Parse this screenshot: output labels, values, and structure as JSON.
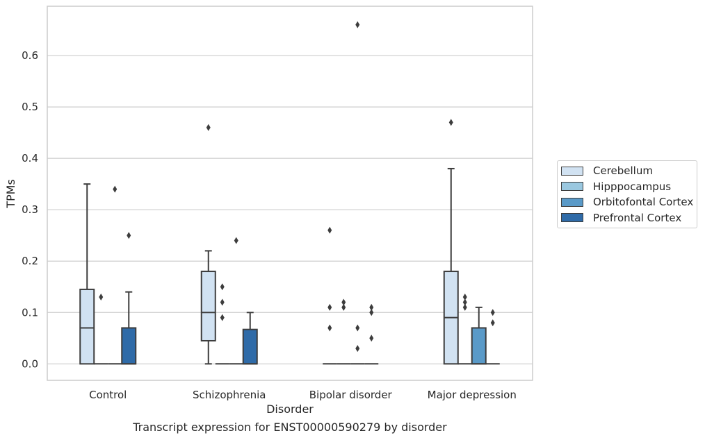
{
  "caption": "Transcript expression for ENST00000590279 by disorder",
  "chart_data": {
    "type": "box",
    "title": "",
    "xlabel": "Disorder",
    "ylabel": "TPMs",
    "ylim": [
      -0.032,
      0.696
    ],
    "yticks": [
      "0.0",
      "0.1",
      "0.2",
      "0.3",
      "0.4",
      "0.5",
      "0.6"
    ],
    "grid": true,
    "legend_position": "right, outside plot",
    "categories": [
      "Control",
      "Schizophrenia",
      "Bipolar disorder",
      "Major depression"
    ],
    "series": [
      {
        "name": "Cerebellum",
        "color": "#d1e2f2",
        "boxes": [
          {
            "q1": 0.0,
            "median": 0.07,
            "q3": 0.145,
            "whisker_low": 0.0,
            "whisker_high": 0.35,
            "outliers": []
          },
          {
            "q1": 0.045,
            "median": 0.1,
            "q3": 0.18,
            "whisker_low": 0.0,
            "whisker_high": 0.22,
            "outliers": [
              0.46
            ]
          },
          {
            "q1": 0.0,
            "median": 0.0,
            "q3": 0.0,
            "whisker_low": 0.0,
            "whisker_high": 0.0,
            "outliers": [
              0.07,
              0.11,
              0.26
            ]
          },
          {
            "q1": 0.0,
            "median": 0.09,
            "q3": 0.18,
            "whisker_low": 0.0,
            "whisker_high": 0.38,
            "outliers": [
              0.47
            ]
          }
        ]
      },
      {
        "name": "Hipppocampus",
        "color": "#9ac8e0",
        "boxes": [
          {
            "q1": 0.0,
            "median": 0.0,
            "q3": 0.0,
            "whisker_low": 0.0,
            "whisker_high": 0.0,
            "outliers": [
              0.13
            ]
          },
          {
            "q1": 0.0,
            "median": 0.0,
            "q3": 0.0,
            "whisker_low": 0.0,
            "whisker_high": 0.0,
            "outliers": [
              0.09,
              0.12,
              0.15
            ]
          },
          {
            "q1": 0.0,
            "median": 0.0,
            "q3": 0.0,
            "whisker_low": 0.0,
            "whisker_high": 0.0,
            "outliers": [
              0.11,
              0.12
            ]
          },
          {
            "q1": 0.0,
            "median": 0.0,
            "q3": 0.0,
            "whisker_low": 0.0,
            "whisker_high": 0.0,
            "outliers": [
              0.11,
              0.12,
              0.13
            ]
          }
        ]
      },
      {
        "name": "Orbitofontal Cortex",
        "color": "#5a9ac8",
        "boxes": [
          {
            "q1": 0.0,
            "median": 0.0,
            "q3": 0.0,
            "whisker_low": 0.0,
            "whisker_high": 0.0,
            "outliers": [
              0.34
            ]
          },
          {
            "q1": 0.0,
            "median": 0.0,
            "q3": 0.0,
            "whisker_low": 0.0,
            "whisker_high": 0.0,
            "outliers": [
              0.24
            ]
          },
          {
            "q1": 0.0,
            "median": 0.0,
            "q3": 0.0,
            "whisker_low": 0.0,
            "whisker_high": 0.0,
            "outliers": [
              0.03,
              0.07,
              0.66
            ]
          },
          {
            "q1": 0.0,
            "median": 0.0,
            "q3": 0.07,
            "whisker_low": 0.0,
            "whisker_high": 0.11,
            "outliers": []
          }
        ]
      },
      {
        "name": "Prefrontal Cortex",
        "color": "#2f6ba8",
        "boxes": [
          {
            "q1": 0.0,
            "median": 0.0,
            "q3": 0.07,
            "whisker_low": 0.0,
            "whisker_high": 0.14,
            "outliers": [
              0.25
            ]
          },
          {
            "q1": 0.0,
            "median": 0.0,
            "q3": 0.067,
            "whisker_low": 0.0,
            "whisker_high": 0.1,
            "outliers": []
          },
          {
            "q1": 0.0,
            "median": 0.0,
            "q3": 0.0,
            "whisker_low": 0.0,
            "whisker_high": 0.0,
            "outliers": [
              0.05,
              0.1,
              0.11
            ]
          },
          {
            "q1": 0.0,
            "median": 0.0,
            "q3": 0.0,
            "whisker_low": 0.0,
            "whisker_high": 0.0,
            "outliers": [
              0.08,
              0.1
            ]
          }
        ]
      }
    ]
  }
}
